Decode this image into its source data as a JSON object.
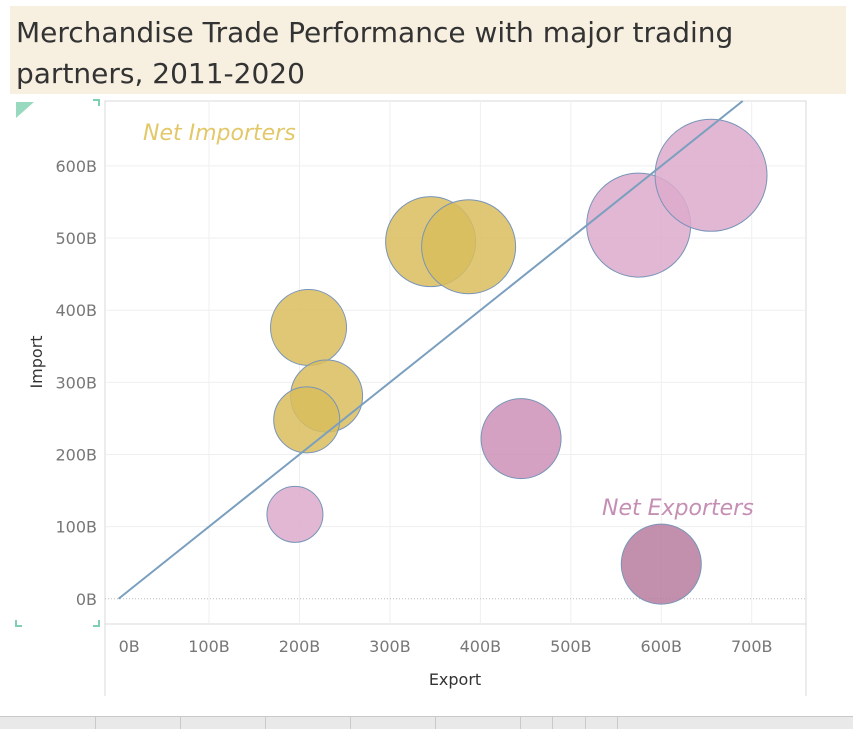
{
  "title": "Merchandise Trade Performance with major trading partners, 2011-2020",
  "chart_data": {
    "type": "scatter",
    "title": "Merchandise Trade Performance with major trading partners, 2011-2020",
    "xlabel": "Export",
    "ylabel": "Import",
    "xlim": [
      -15,
      760
    ],
    "ylim": [
      -35,
      690
    ],
    "x_ticks": [
      0,
      100,
      200,
      300,
      400,
      500,
      600,
      700
    ],
    "x_tick_labels": [
      "0B",
      "100B",
      "200B",
      "300B",
      "400B",
      "500B",
      "600B",
      "700B"
    ],
    "y_ticks": [
      0,
      100,
      200,
      300,
      400,
      500,
      600
    ],
    "y_tick_labels": [
      "0B",
      "100B",
      "200B",
      "300B",
      "400B",
      "500B",
      "600B"
    ],
    "grid": true,
    "reference_line": {
      "type": "y=x"
    },
    "annotations": [
      "Net Importers",
      "Net Exporters"
    ],
    "colors": {
      "importer": "#d9bd5e",
      "exporter_light": "#ddaacb",
      "exporter_mid": "#cd90b8",
      "exporter_dark": "#b77c9f",
      "reference_line": "#7a9fbf",
      "outline": "#7894b8"
    },
    "points": [
      {
        "x": 345,
        "y": 495,
        "size": 45,
        "group": "importer"
      },
      {
        "x": 387,
        "y": 488,
        "size": 47,
        "group": "importer"
      },
      {
        "x": 210,
        "y": 376,
        "size": 38,
        "group": "importer"
      },
      {
        "x": 230,
        "y": 281,
        "size": 36,
        "group": "importer"
      },
      {
        "x": 208,
        "y": 248,
        "size": 33,
        "group": "importer"
      },
      {
        "x": 575,
        "y": 518,
        "size": 52,
        "group": "exporter_light"
      },
      {
        "x": 655,
        "y": 587,
        "size": 56,
        "group": "exporter_light"
      },
      {
        "x": 195,
        "y": 117,
        "size": 28,
        "group": "exporter_light"
      },
      {
        "x": 445,
        "y": 222,
        "size": 40,
        "group": "exporter_mid"
      },
      {
        "x": 600,
        "y": 48,
        "size": 40,
        "group": "exporter_dark"
      }
    ]
  }
}
